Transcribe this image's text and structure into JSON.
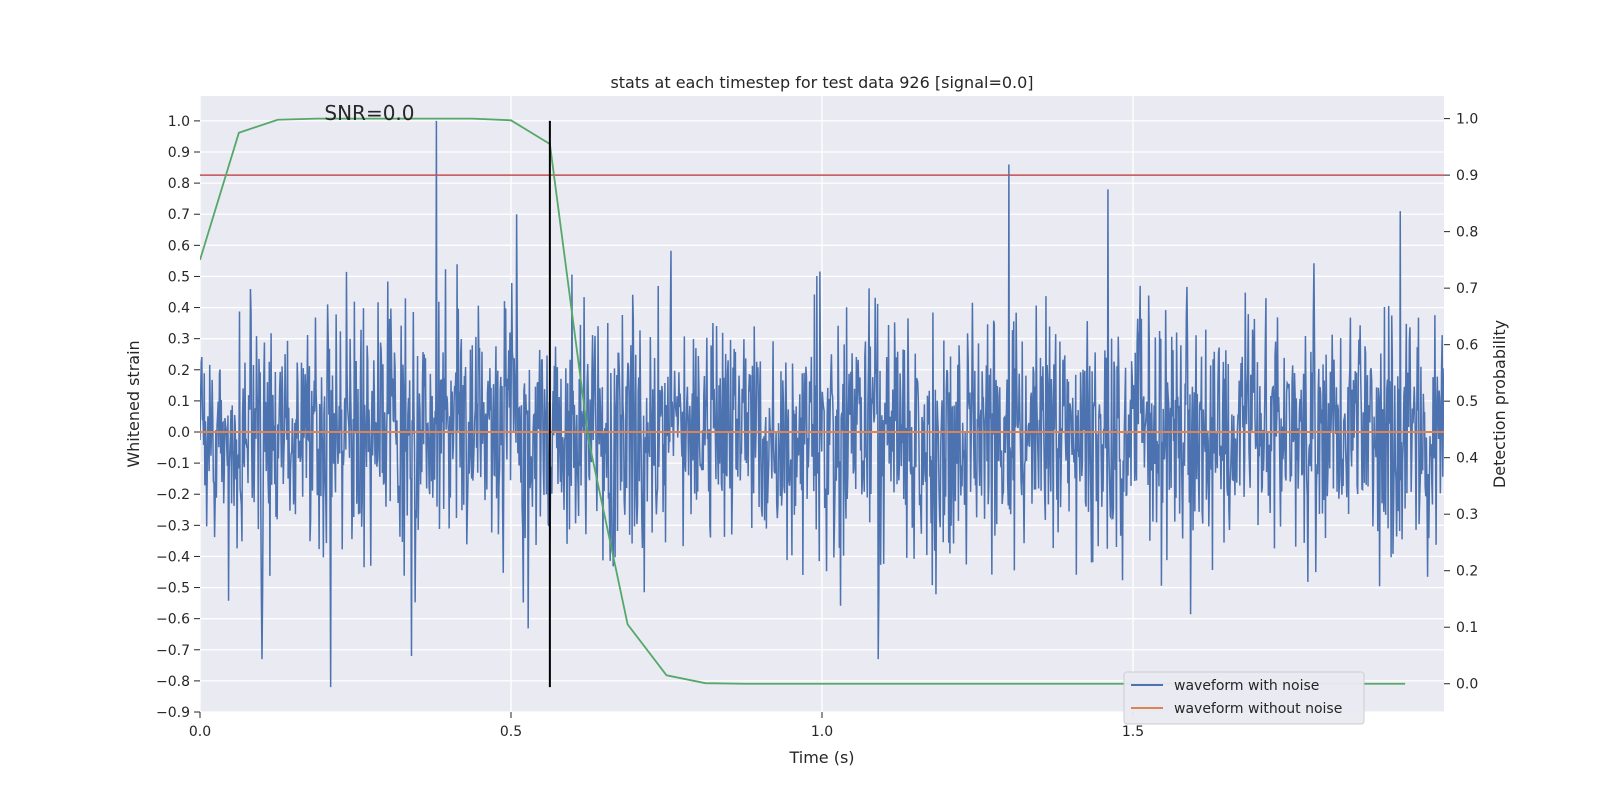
{
  "chart_data": {
    "type": "line",
    "title": "stats at each timestep for test data 926 [signal=0.0]",
    "xlabel": "Time (s)",
    "ylabel_left": "Whitened strain",
    "ylabel_right": "Detection probability",
    "xlim": [
      0.0,
      2.0
    ],
    "ylim_left": [
      -0.9,
      1.08
    ],
    "ylim_right": [
      -0.05,
      1.04
    ],
    "x_ticks": [
      "0.0",
      "0.5",
      "1.0",
      "1.5"
    ],
    "x_tick_values": [
      0.0,
      0.5,
      1.0,
      1.5
    ],
    "y_ticks_left": [
      "1.0",
      "0.9",
      "0.8",
      "0.7",
      "0.6",
      "0.5",
      "0.4",
      "0.3",
      "0.2",
      "0.1",
      "0.0",
      "−0.1",
      "−0.2",
      "−0.3",
      "−0.4",
      "−0.5",
      "−0.6",
      "−0.7",
      "−0.8",
      "−0.9"
    ],
    "y_tick_values_left": [
      1.0,
      0.9,
      0.8,
      0.7,
      0.6,
      0.5,
      0.4,
      0.3,
      0.2,
      0.1,
      0.0,
      -0.1,
      -0.2,
      -0.3,
      -0.4,
      -0.5,
      -0.6,
      -0.7,
      -0.8,
      -0.9
    ],
    "y_ticks_right": [
      "1.0",
      "0.9",
      "0.8",
      "0.7",
      "0.6",
      "0.5",
      "0.4",
      "0.3",
      "0.2",
      "0.1",
      "0.0"
    ],
    "y_tick_values_right": [
      1.0,
      0.9,
      0.8,
      0.7,
      0.6,
      0.5,
      0.4,
      0.3,
      0.2,
      0.1,
      0.0
    ],
    "annotation": "SNR=0.0",
    "annotation_x": 0.2,
    "annotation_y": 1.0,
    "noise": {
      "name": "waveform with noise",
      "color": "#4c72b0",
      "sample_count": 2048,
      "sigma": 0.2,
      "seed": 926,
      "peaks": [
        {
          "x": 0.38,
          "y": 1.0
        },
        {
          "x": 1.3,
          "y": 0.86
        },
        {
          "x": 1.46,
          "y": 0.78
        },
        {
          "x": 1.93,
          "y": 0.71
        },
        {
          "x": 0.21,
          "y": -0.82
        },
        {
          "x": 0.1,
          "y": -0.73
        },
        {
          "x": 0.34,
          "y": -0.72
        },
        {
          "x": 1.09,
          "y": -0.73
        }
      ]
    },
    "clean": {
      "name": "waveform without noise",
      "color": "#dd8452",
      "y": 0.0
    },
    "probability": {
      "name": "detection probability",
      "color": "#55a868",
      "x": [
        0.0,
        0.0625,
        0.125,
        0.1875,
        0.25,
        0.3125,
        0.375,
        0.4375,
        0.5,
        0.5625,
        0.625,
        0.6875,
        0.75,
        0.8125,
        0.875,
        0.9375,
        1.0,
        1.0625,
        1.125,
        1.1875,
        1.25,
        1.3125,
        1.375,
        1.4375,
        1.5,
        1.5625,
        1.625,
        1.6875,
        1.75,
        1.8125,
        1.875,
        1.9375
      ],
      "y": [
        0.75,
        0.975,
        0.998,
        1.0,
        1.0,
        1.0,
        1.0,
        1.0,
        0.997,
        0.955,
        0.43,
        0.105,
        0.015,
        0.001,
        0.0,
        0.0,
        0.0,
        0.0,
        0.0,
        0.0,
        0.0,
        0.0,
        0.0,
        0.0,
        0.0,
        0.0,
        0.0,
        0.0,
        0.0,
        0.0,
        0.0,
        0.0
      ]
    },
    "threshold": {
      "value_right": 0.9,
      "color": "#c44e52"
    },
    "marker_line": {
      "x": 0.5625,
      "y_from": -0.82,
      "y_to": 1.0,
      "color": "#000000"
    },
    "legend_position": "lower-right"
  }
}
